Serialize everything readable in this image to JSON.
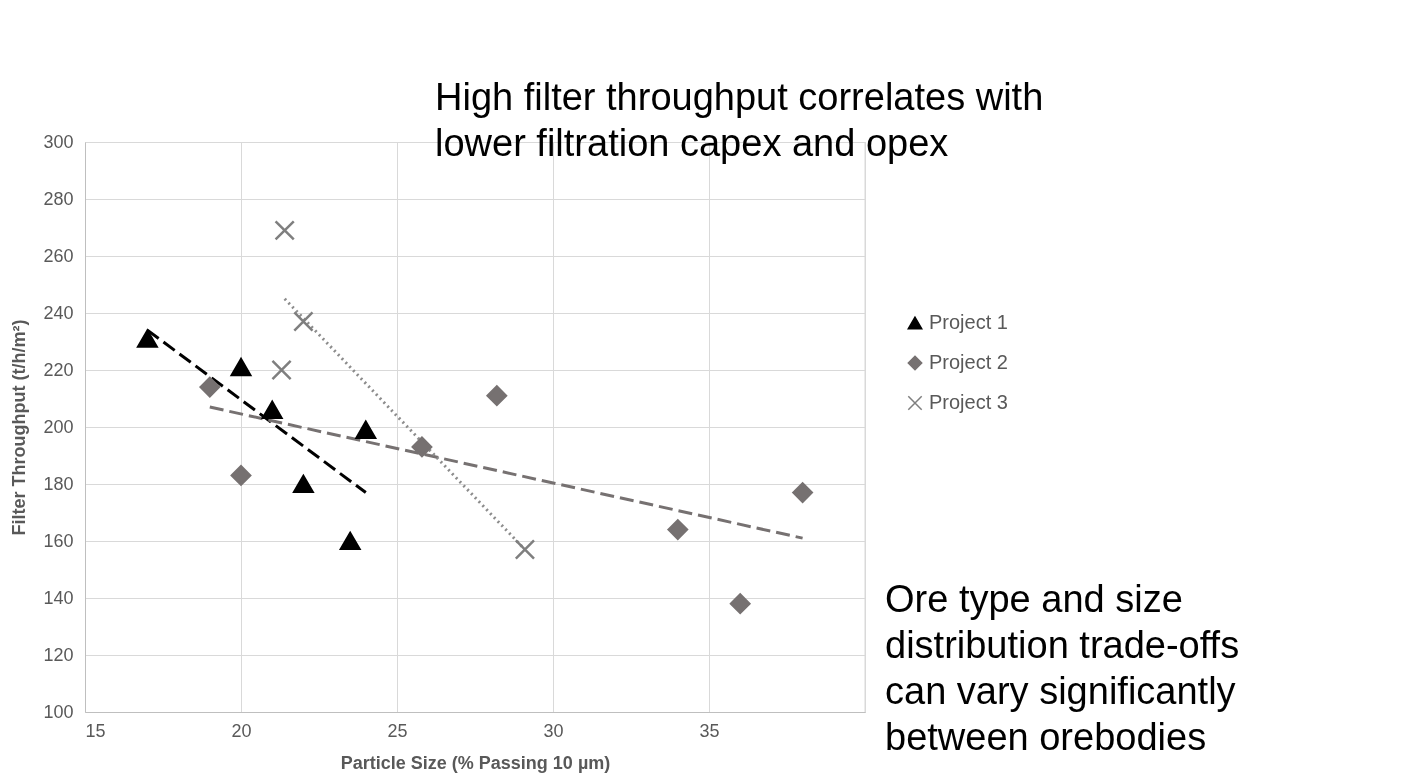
{
  "chart_data": {
    "type": "scatter",
    "xlabel": "Particle Size (% Passing 10 µm)",
    "ylabel": "Filter Throughput (t/h/m²)",
    "xlim": [
      15,
      40
    ],
    "xticks": [
      15,
      20,
      25,
      30,
      35,
      {
        "value": 40,
        "label": null
      }
    ],
    "ylim": [
      100,
      300
    ],
    "yticks": [
      100,
      120,
      140,
      160,
      180,
      200,
      220,
      240,
      260,
      280,
      300
    ],
    "grid": true,
    "legend": "right",
    "series": [
      {
        "name": "Project 1",
        "marker": "triangle",
        "color": "#000000",
        "x": [
          17,
          20,
          21,
          22,
          23.5,
          24
        ],
        "values": [
          231,
          221,
          206,
          180,
          160,
          199
        ]
      },
      {
        "name": "Project 2",
        "marker": "diamond",
        "color": "#767171",
        "x": [
          19,
          20,
          25.8,
          28.2,
          34,
          36,
          38
        ],
        "values": [
          214,
          183,
          193,
          211,
          164,
          138,
          177
        ]
      },
      {
        "name": "Project 3",
        "marker": "cross",
        "color": "#7f7f7f",
        "x": [
          21.4,
          21.3,
          22,
          29.1
        ],
        "values": [
          269,
          220,
          237,
          157
        ]
      },
      {
        "type": "line",
        "line_style": "dashed",
        "color": "#000000",
        "x": [
          17,
          24
        ],
        "values": [
          234,
          177
        ]
      },
      {
        "type": "line",
        "line_style": "dashed",
        "color": "#767171",
        "x": [
          19,
          38
        ],
        "values": [
          207,
          161
        ]
      },
      {
        "type": "line",
        "line_style": "dotted",
        "color": "#8c8c8c",
        "x": [
          21.4,
          29.1
        ],
        "values": [
          245,
          157
        ]
      }
    ],
    "annotations": [
      "High filter throughput correlates with\nlower filtration capex and opex",
      "Ore type and size\ndistribution trade-offs\ncan vary significantly\nbetween orebodies"
    ]
  }
}
